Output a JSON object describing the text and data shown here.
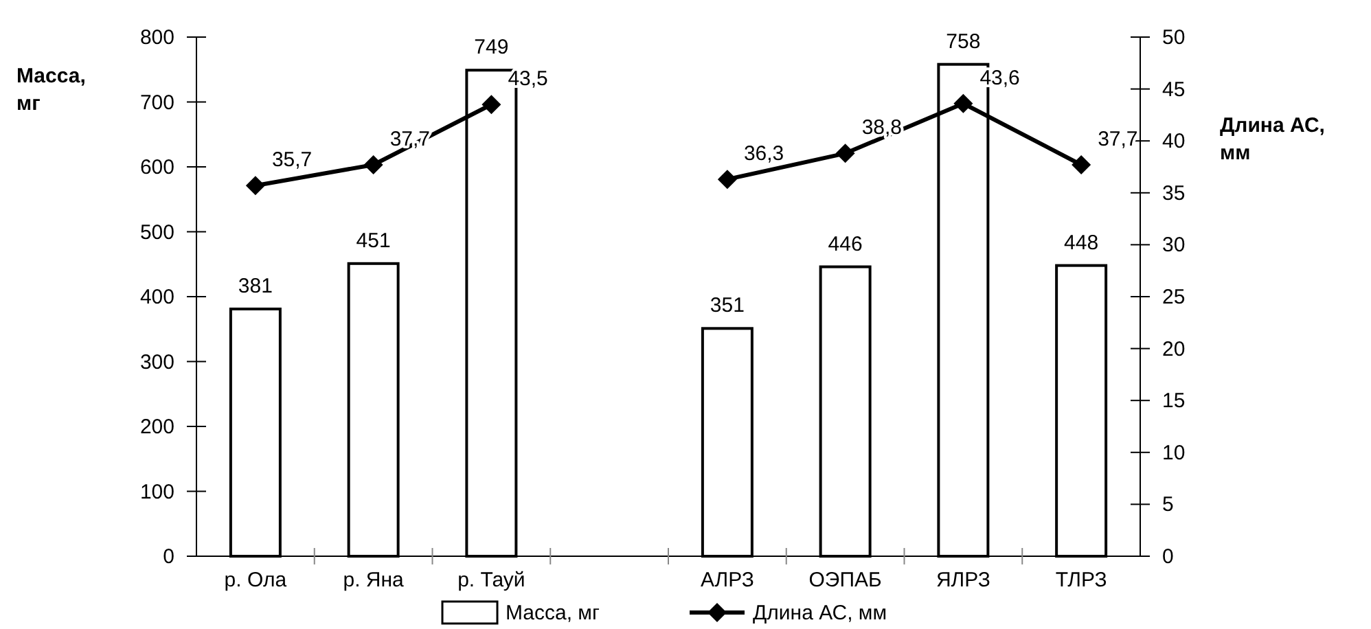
{
  "chart_data": {
    "type": "bar",
    "categories": [
      "р. Ола",
      "р. Яна",
      "р. Тауй",
      null,
      "АЛРЗ",
      "ОЭПАБ",
      "ЯЛРЗ",
      "ТЛРЗ"
    ],
    "series": [
      {
        "name": "Масса, мг",
        "color": "#ffffff",
        "values": [
          381,
          451,
          749,
          null,
          351,
          446,
          758,
          448
        ],
        "value_labels": [
          "381",
          "451",
          "749",
          null,
          "351",
          "446",
          "758",
          "448"
        ]
      },
      {
        "name": "Длина АС, мм",
        "type": "line",
        "axis": "y2",
        "color": "#000000",
        "marker": "diamond",
        "values": [
          35.7,
          37.7,
          43.5,
          null,
          36.3,
          38.8,
          43.6,
          37.7
        ],
        "value_labels": [
          "35,7",
          "37,7",
          "43,5",
          null,
          "36,3",
          "38,8",
          "43,6",
          "37,7"
        ]
      }
    ],
    "ylabel": "Масса, мг",
    "y2label": "Длина АС, мм",
    "ylim": [
      0,
      800
    ],
    "yticks": [
      0,
      100,
      200,
      300,
      400,
      500,
      600,
      700,
      800
    ],
    "y2lim": [
      0,
      50
    ],
    "y2ticks": [
      0,
      5,
      10,
      15,
      20,
      25,
      30,
      35,
      40,
      45,
      50
    ],
    "legend": "bottom"
  }
}
